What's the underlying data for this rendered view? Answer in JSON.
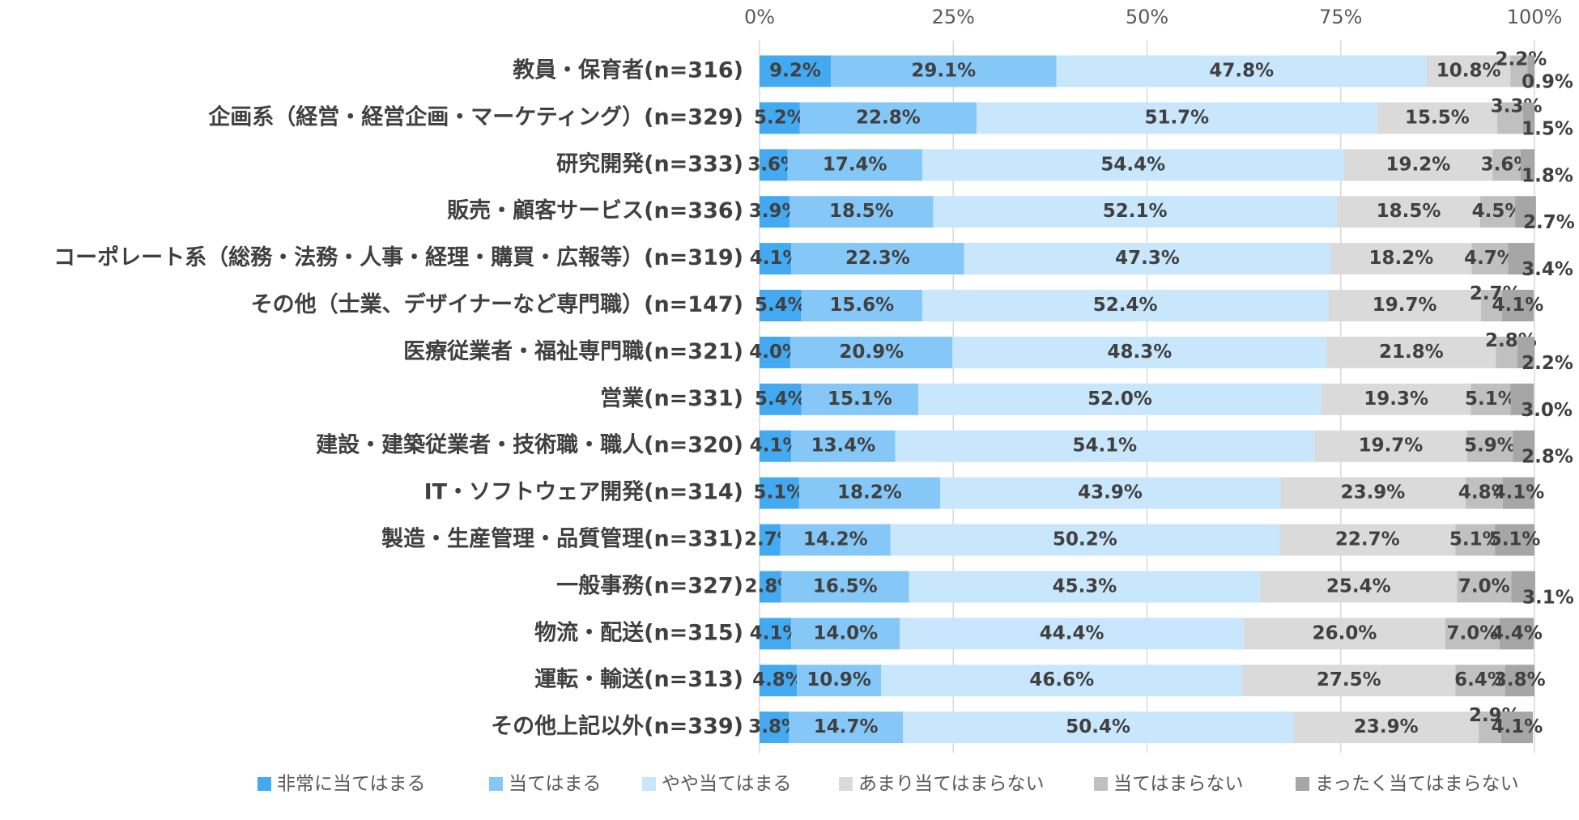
{
  "chart_data": {
    "type": "stacked-bar-horizontal",
    "categories": [
      "教員・保育者(n=316)",
      "企画系（経営・経営企画・マーケティング）(n=329)",
      "研究開発(n=333)",
      "販売・顧客サービス(n=336)",
      "コーポレート系（総務・法務・人事・経理・購買・広報等）(n=319)",
      "その他（士業、デザイナーなど専門職）(n=147)",
      "医療従業者・福祉専門職(n=321)",
      "営業(n=331)",
      "建設・建築従業者・技術職・職人(n=320)",
      "IT・ソフトウェア開発(n=314)",
      "製造・生産管理・品質管理(n=331)",
      "一般事務(n=327)",
      "物流・配送(n=315)",
      "運転・輸送(n=313)",
      "その他上記以外(n=339)"
    ],
    "series": [
      {
        "name": "非常に当てはまる",
        "color": "#43aaf2",
        "values": [
          9.2,
          5.2,
          3.6,
          3.9,
          4.1,
          5.4,
          4.0,
          5.4,
          4.1,
          5.1,
          2.7,
          2.8,
          4.1,
          4.8,
          3.8
        ],
        "value_labels": [
          "9.2%",
          "5.2%",
          "3.6%",
          "3.9%",
          "4.1%",
          "5.4%",
          "4.0%",
          "5.4%",
          "4.1%",
          "5.1%",
          "2.7%",
          "2.8%",
          "4.1%",
          "4.8%",
          "3.8%"
        ]
      },
      {
        "name": "当てはまる",
        "color": "#85c8f8",
        "values": [
          29.1,
          22.8,
          17.4,
          18.5,
          22.3,
          15.6,
          20.9,
          15.1,
          13.4,
          18.2,
          14.2,
          16.5,
          14.0,
          10.9,
          14.7
        ],
        "value_labels": [
          "29.1%",
          "22.8%",
          "17.4%",
          "18.5%",
          "22.3%",
          "15.6%",
          "20.9%",
          "15.1%",
          "13.4%",
          "18.2%",
          "14.2%",
          "16.5%",
          "14.0%",
          "10.9%",
          "14.7%"
        ]
      },
      {
        "name": "やや当てはまる",
        "color": "#c8e6fc",
        "values": [
          47.8,
          51.7,
          54.4,
          52.1,
          47.3,
          52.4,
          48.3,
          52.0,
          54.1,
          43.9,
          50.2,
          45.3,
          44.4,
          46.6,
          50.4
        ],
        "value_labels": [
          "47.8%",
          "51.7%",
          "54.4%",
          "52.1%",
          "47.3%",
          "52.4%",
          "48.3%",
          "52.0%",
          "54.1%",
          "43.9%",
          "50.2%",
          "45.3%",
          "44.4%",
          "46.6%",
          "50.4%"
        ]
      },
      {
        "name": "あまり当てはまらない",
        "color": "#dadada",
        "values": [
          10.8,
          15.5,
          19.2,
          18.5,
          18.2,
          19.7,
          21.8,
          19.3,
          19.7,
          23.9,
          22.7,
          25.4,
          26.0,
          27.5,
          23.9
        ],
        "value_labels": [
          "10.8%",
          "15.5%",
          "19.2%",
          "18.5%",
          "18.2%",
          "19.7%",
          "21.8%",
          "19.3%",
          "19.7%",
          "23.9%",
          "22.7%",
          "25.4%",
          "26.0%",
          "27.5%",
          "23.9%"
        ]
      },
      {
        "name": "当てはまらない",
        "color": "#c0c0c0",
        "values": [
          2.2,
          3.3,
          3.6,
          4.5,
          4.7,
          2.7,
          2.8,
          5.1,
          5.9,
          4.8,
          5.1,
          7.0,
          7.0,
          6.4,
          2.9
        ],
        "value_labels": [
          "2.2%",
          "3.3%",
          "3.6%",
          "4.5%",
          "4.7%",
          "2.7%",
          "2.8%",
          "5.1%",
          "5.9%",
          "4.8%",
          "5.1%",
          "7.0%",
          "7.0%",
          "6.4%",
          "2.9%"
        ]
      },
      {
        "name": "まったく当てはまらない",
        "color": "#a6a6a6",
        "values": [
          0.9,
          1.5,
          1.8,
          2.7,
          3.4,
          4.1,
          2.2,
          3.0,
          2.8,
          4.1,
          5.1,
          3.1,
          4.4,
          3.8,
          4.1
        ],
        "value_labels": [
          "0.9%",
          "1.5%",
          "1.8%",
          "2.7%",
          "3.4%",
          "4.1%",
          "2.2%",
          "3.0%",
          "2.8%",
          "4.1%",
          "5.1%",
          "3.1%",
          "4.4%",
          "3.8%",
          "4.1%"
        ]
      }
    ],
    "xlim": [
      0,
      100
    ],
    "xticks": [
      {
        "value": 0,
        "label": "0%"
      },
      {
        "value": 25,
        "label": "25%"
      },
      {
        "value": 50,
        "label": "50%"
      },
      {
        "value": 75,
        "label": "75%"
      },
      {
        "value": 100,
        "label": "100%"
      }
    ],
    "grid": true
  }
}
